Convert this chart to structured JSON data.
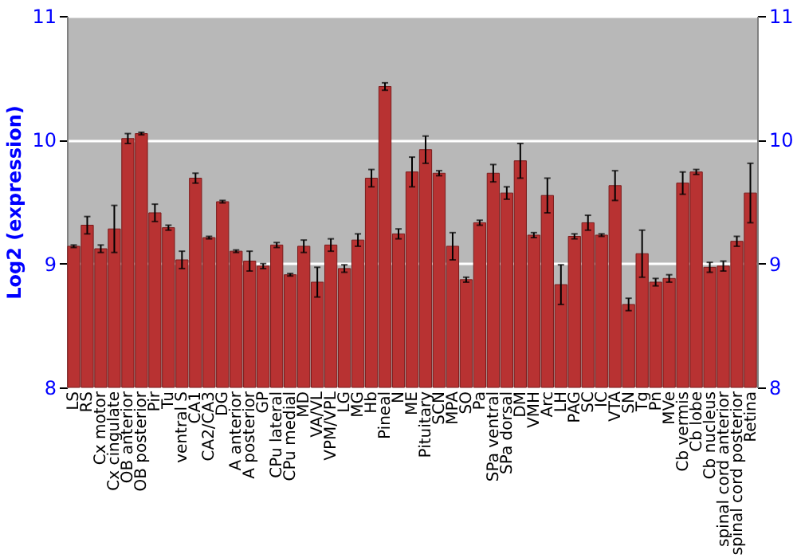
{
  "chart_data": {
    "type": "bar",
    "ylabel": "Log2 (expression)",
    "categories": [
      "LS",
      "RS",
      "Cx motor",
      "Cx cingulate",
      "OB anterior",
      "OB posterior",
      "Pir",
      "Tu",
      "ventral S",
      "CA1",
      "CA2/CA3",
      "DG",
      "A anterior",
      "A posterior",
      "GP",
      "CPu lateral",
      "CPu medial",
      "MD",
      "VA/VL",
      "VPM/VPL",
      "LG",
      "MG",
      "Hb",
      "Pineal",
      "N",
      "ME",
      "Pituitary",
      "SCN",
      "MPA",
      "SO",
      "Pa",
      "SPa ventral",
      "SPa dorsal",
      "DM",
      "VMH",
      "Arc",
      "LH",
      "PAG",
      "SC",
      "IC",
      "VTA",
      "SN",
      "Tg",
      "Pn",
      "MVe",
      "Cb vermis",
      "Cb lobe",
      "Cb nucleus",
      "spinal cord anterior",
      "spinal cord posterior",
      "Retina"
    ],
    "values": [
      9.14,
      9.31,
      9.12,
      9.28,
      10.01,
      10.05,
      9.41,
      9.29,
      9.03,
      9.69,
      9.21,
      9.5,
      9.1,
      9.02,
      8.98,
      9.15,
      8.91,
      9.14,
      8.85,
      9.15,
      8.96,
      9.19,
      9.69,
      10.43,
      9.24,
      9.74,
      9.92,
      9.73,
      9.14,
      8.87,
      9.33,
      9.73,
      9.57,
      9.83,
      9.23,
      9.55,
      8.83,
      9.22,
      9.33,
      9.23,
      9.63,
      8.67,
      9.08,
      8.85,
      8.88,
      9.65,
      9.74,
      8.97,
      8.98,
      9.18,
      9.57
    ],
    "errors": [
      0.01,
      0.07,
      0.03,
      0.19,
      0.04,
      0.01,
      0.07,
      0.02,
      0.07,
      0.04,
      0.01,
      0.01,
      0.01,
      0.08,
      0.02,
      0.02,
      0.01,
      0.05,
      0.12,
      0.05,
      0.03,
      0.05,
      0.07,
      0.03,
      0.04,
      0.12,
      0.11,
      0.02,
      0.11,
      0.02,
      0.02,
      0.07,
      0.05,
      0.14,
      0.02,
      0.14,
      0.16,
      0.02,
      0.06,
      0.01,
      0.12,
      0.05,
      0.19,
      0.03,
      0.03,
      0.09,
      0.02,
      0.04,
      0.04,
      0.04,
      0.24
    ],
    "color": "#b83232",
    "ylim": [
      8,
      11
    ],
    "yticks": [
      8,
      9,
      10,
      11
    ],
    "y2lim": [
      8,
      11
    ],
    "y2ticks": [
      8,
      9,
      10,
      11
    ],
    "grid": true
  }
}
